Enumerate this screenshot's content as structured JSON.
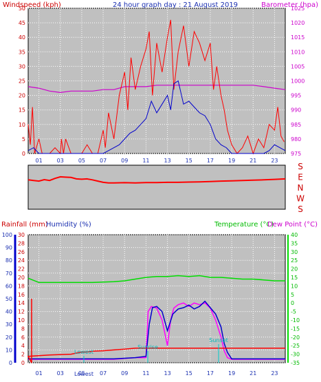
{
  "title": "24 hour graph day : 21 August 2019",
  "top_left_label": "Windspeed (kph)",
  "top_right_label": "Barometer (hpa)",
  "wind_dir_letters": [
    "S",
    "E",
    "N",
    "W",
    "S"
  ],
  "bottom_labels": {
    "rainfall": "Rainfall (mm)",
    "humidity": "Humidity (%)",
    "temperature": "Temperature (°C)",
    "dewpoint": "Dew Point (°C)"
  },
  "annotations": [
    "Lowest",
    "Sunrise",
    "Sunset",
    "Lowest"
  ],
  "colors": {
    "wind": "#ff0000",
    "gust": "#0000cc",
    "baro": "#cc00cc",
    "dir": "#ff0000",
    "rain": "#ff0000",
    "humidity": "#0000cc",
    "temperature": "#00dd00",
    "dewpoint": "#ff00ff",
    "bg": "#c0c0c0",
    "label_red": "#cc0000"
  },
  "chart_data": [
    {
      "type": "line",
      "name": "wind_barometer",
      "x_ticks": [
        "01",
        "03",
        "05",
        "07",
        "09",
        "11",
        "13",
        "15",
        "17",
        "19",
        "21",
        "23"
      ],
      "left_ylim": [
        0,
        50
      ],
      "left_ticks": [
        0,
        5,
        10,
        15,
        20,
        25,
        30,
        35,
        40,
        45,
        50
      ],
      "right_ylim": [
        975,
        1025
      ],
      "right_ticks": [
        975,
        980,
        985,
        990,
        995,
        1000,
        1005,
        1010,
        1015,
        1020,
        1025
      ],
      "series": [
        {
          "key": "wind",
          "hours": [
            0,
            0.2,
            0.4,
            0.6,
            1,
            1.3,
            2,
            2.5,
            3,
            3.1,
            3.3,
            3.5,
            4,
            5,
            5.5,
            6,
            6.5,
            7,
            7.2,
            7.5,
            8,
            8.5,
            9,
            9.3,
            9.6,
            10,
            10.5,
            11,
            11.3,
            11.6,
            12,
            12.5,
            13,
            13.3,
            13.6,
            14,
            14.5,
            15,
            15.5,
            16,
            16.5,
            17,
            17.3,
            17.6,
            18,
            18.3,
            18.6,
            19,
            19.5,
            20,
            20.5,
            21,
            21.5,
            22,
            22.5,
            23,
            23.3,
            23.6,
            23.9
          ],
          "values": [
            10,
            3,
            16,
            0,
            5,
            0,
            0,
            2,
            0,
            5,
            0,
            5,
            0,
            0,
            3,
            0,
            0,
            8,
            2,
            14,
            5,
            20,
            28,
            15,
            33,
            22,
            30,
            36,
            42,
            20,
            38,
            28,
            40,
            46,
            22,
            35,
            44,
            30,
            42,
            38,
            32,
            38,
            22,
            30,
            20,
            15,
            8,
            3,
            0,
            2,
            6,
            0,
            5,
            2,
            10,
            8,
            16,
            6,
            4
          ]
        },
        {
          "key": "gust",
          "hours": [
            0,
            0.5,
            1,
            1.5,
            2,
            3,
            4,
            5,
            6,
            6.5,
            7,
            7.5,
            8,
            8.5,
            9,
            9.5,
            10,
            10.5,
            11,
            11.5,
            12,
            12.5,
            13,
            13.3,
            13.6,
            14,
            14.5,
            15,
            15.5,
            16,
            16.5,
            17,
            17.5,
            18,
            18.5,
            19,
            19.5,
            20,
            21,
            22,
            22.5,
            23,
            23.5,
            24
          ],
          "values": [
            1,
            2,
            0,
            0,
            0,
            0,
            0,
            0,
            0,
            0,
            0,
            1,
            2,
            3,
            5,
            7,
            8,
            10,
            12,
            18,
            14,
            17,
            20,
            15,
            24,
            25,
            17,
            18,
            16,
            14,
            13,
            10,
            5,
            3,
            2,
            0,
            0,
            0,
            0,
            0,
            1,
            3,
            2,
            1
          ]
        },
        {
          "key": "baro",
          "hours": [
            0,
            1,
            2,
            3,
            4,
            5,
            6,
            7,
            8,
            9,
            10,
            11,
            12,
            13,
            14,
            15,
            16,
            17,
            18,
            19,
            20,
            21,
            22,
            23,
            24
          ],
          "values": [
            998,
            997.5,
            996.5,
            996,
            996.5,
            996.5,
            996.5,
            997,
            997,
            998,
            998,
            998,
            998.5,
            998.5,
            998.5,
            998.5,
            998.5,
            998.5,
            998.5,
            998.5,
            998.5,
            998.5,
            998,
            997.5,
            997
          ]
        }
      ]
    },
    {
      "type": "line",
      "name": "wind_direction",
      "ylabels": [
        "S",
        "E",
        "N",
        "W",
        "S"
      ],
      "series": [
        {
          "key": "dir",
          "hours": [
            0,
            0.5,
            1,
            1.5,
            2,
            2.5,
            3,
            3.5,
            4,
            4.5,
            5,
            5.5,
            6,
            6.5,
            7,
            7.5,
            8,
            9,
            10,
            11,
            12,
            13,
            14,
            15,
            16,
            17,
            18,
            19,
            20,
            21,
            22,
            23,
            24
          ],
          "values": [
            120,
            125,
            130,
            118,
            125,
            108,
            95,
            98,
            100,
            112,
            115,
            112,
            120,
            130,
            140,
            145,
            145,
            143,
            145,
            142,
            142,
            140,
            140,
            138,
            136,
            134,
            130,
            128,
            125,
            122,
            120,
            116,
            112
          ]
        }
      ]
    },
    {
      "type": "line",
      "name": "rain_humidity_temp",
      "x_ticks": [
        "01",
        "03",
        "05",
        "07",
        "09",
        "11",
        "13",
        "15",
        "17",
        "19",
        "21",
        "23"
      ],
      "left_humidity_ticks": [
        0,
        10,
        20,
        30,
        40,
        50,
        60,
        70,
        80,
        90,
        100
      ],
      "left_rain_ticks": [
        0,
        2,
        4,
        6,
        8,
        10,
        12,
        14,
        16,
        18,
        20,
        22,
        24,
        26,
        28,
        30
      ],
      "right_temp_ticks": [
        -35,
        -30,
        -25,
        -20,
        -15,
        -10,
        -5,
        0,
        5,
        10,
        15,
        20,
        25,
        30,
        35,
        40
      ],
      "series": [
        {
          "key": "rain",
          "hours": [
            -0.3,
            -0.3,
            0,
            2,
            4,
            5,
            5.5,
            6,
            7,
            8,
            9,
            10,
            11,
            12,
            13,
            14,
            15,
            16,
            17,
            18,
            19,
            20,
            21,
            22,
            23,
            24
          ],
          "values": [
            15,
            0,
            1.5,
            1.8,
            2,
            2.5,
            2.5,
            2.7,
            2.8,
            3,
            3.2,
            3.4,
            3.4,
            3.4,
            3.4,
            3.4,
            3.4,
            3.4,
            3.4,
            3.4,
            3.4,
            3.4,
            3.4,
            3.4,
            3.4,
            3.4
          ]
        },
        {
          "key": "humidity",
          "hours": [
            0,
            4,
            8,
            10,
            11,
            11.3,
            11.6,
            12,
            12.5,
            13,
            13.5,
            14,
            14.5,
            15,
            15.5,
            16,
            16.5,
            17,
            17.5,
            18,
            18.3,
            18.6,
            19,
            24
          ],
          "values": [
            3,
            3,
            3,
            4,
            5,
            30,
            43,
            44,
            40,
            25,
            38,
            42,
            43,
            45,
            42,
            44,
            48,
            43,
            38,
            28,
            15,
            8,
            3,
            3
          ]
        },
        {
          "key": "temperature",
          "hours": [
            0,
            1,
            2,
            4,
            6,
            8,
            9,
            10,
            11,
            12,
            13,
            14,
            15,
            16,
            17,
            18,
            19,
            20,
            21,
            22,
            23,
            24
          ],
          "values": [
            14.5,
            12,
            12,
            12,
            12,
            12.5,
            13,
            14,
            15,
            15.5,
            15.5,
            16,
            15.5,
            16,
            15,
            15,
            14.5,
            14,
            14,
            13.5,
            13,
            13
          ]
        },
        {
          "key": "dewpoint",
          "hours": [
            0,
            4,
            8,
            10,
            11,
            11.2,
            11.5,
            12,
            12.5,
            13,
            13.3,
            13.6,
            14,
            14.5,
            15,
            15.5,
            16,
            16.5,
            17,
            17.5,
            18,
            18.3,
            18.6,
            19,
            24
          ],
          "values": [
            -33,
            -33,
            -33,
            -32,
            -32,
            -5,
            -2,
            -3,
            -10,
            -25,
            -10,
            -3,
            -1,
            0,
            -2,
            0,
            -1,
            0,
            -3,
            -10,
            -20,
            -28,
            -32,
            -33,
            -33
          ]
        }
      ]
    }
  ]
}
